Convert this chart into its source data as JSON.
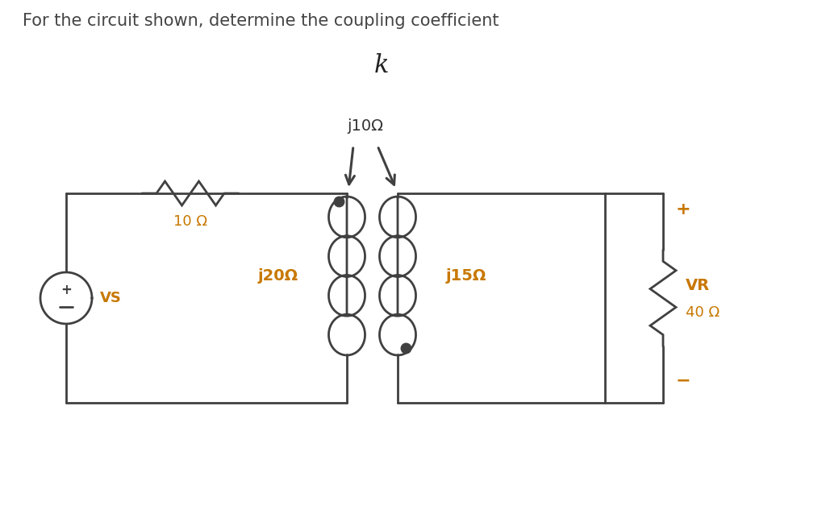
{
  "title_text": "For the circuit shown, determine the coupling coefficient",
  "k_label": "k",
  "title_color": "#444444",
  "circuit_color": "#404040",
  "label_color": "#c87800",
  "background_color": "#ffffff",
  "resistor_label": "10 Ω",
  "inductor1_label": "j20Ω",
  "inductor2_label": "j15Ω",
  "mutual_label": "j10Ω",
  "resistor2_label": "40 Ω",
  "source_label": "VS",
  "vr_label": "VR",
  "plus_label": "+",
  "minus_label": "−"
}
